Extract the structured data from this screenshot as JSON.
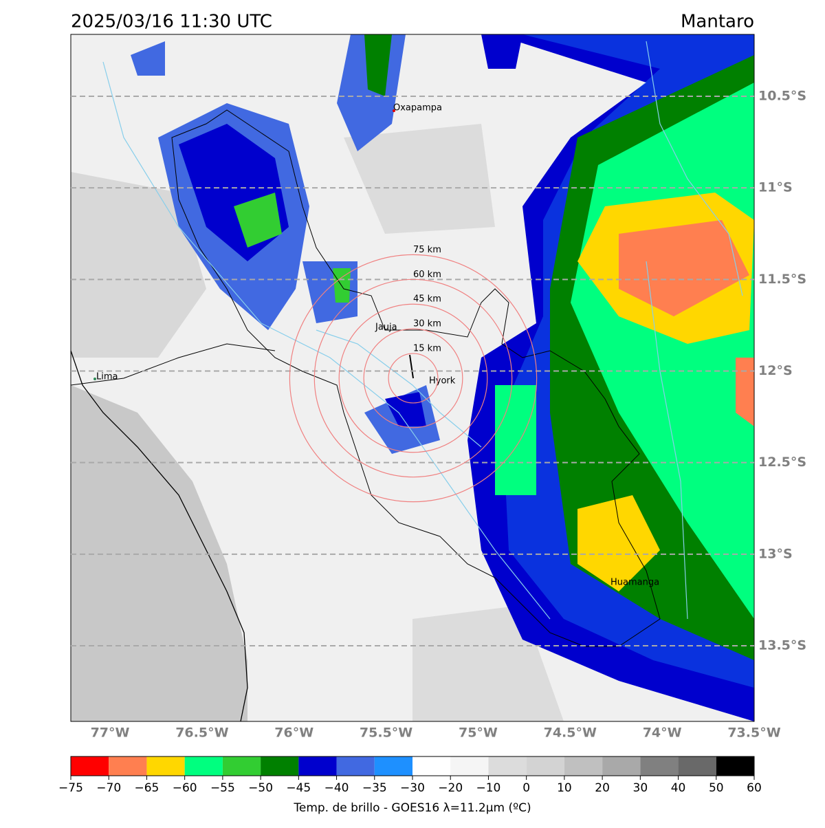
{
  "title": "2025/03/16 11:30 UTC",
  "region": "Mantaro",
  "map": {
    "xlim": [
      -77.213,
      -73.5
    ],
    "ylim": [
      -13.913,
      -10.162
    ],
    "xticks": [
      {
        "value": -77,
        "label": "77°W"
      },
      {
        "value": -76.5,
        "label": "76.5°W"
      },
      {
        "value": -76,
        "label": "76°W"
      },
      {
        "value": -75.5,
        "label": "75.5°W"
      },
      {
        "value": -75,
        "label": "75°W"
      },
      {
        "value": -74.5,
        "label": "74.5°W"
      },
      {
        "value": -74,
        "label": "74°W"
      },
      {
        "value": -73.5,
        "label": "73.5°W"
      }
    ],
    "yticks": [
      {
        "value": -10.5,
        "label": "10.5°S"
      },
      {
        "value": -11,
        "label": "11°S"
      },
      {
        "value": -11.5,
        "label": "11.5°S"
      },
      {
        "value": -12,
        "label": "12°S"
      },
      {
        "value": -12.5,
        "label": "12.5°S"
      },
      {
        "value": -13,
        "label": "13°S"
      },
      {
        "value": -13.5,
        "label": "13.5°S"
      }
    ],
    "lat_grid": true,
    "rings": [
      {
        "value": 15,
        "label": "15 km"
      },
      {
        "value": 30,
        "label": "30 km"
      },
      {
        "value": 45,
        "label": "45 km"
      },
      {
        "value": 60,
        "label": "60 km"
      },
      {
        "value": 75,
        "label": "75 km"
      }
    ],
    "ring_color": "#f08080",
    "cities": [
      "Oxapampa",
      "Jauja",
      "Hyork",
      "Lima",
      "Huamanga"
    ]
  },
  "colorbar": {
    "label": "Temp. de brillo - GOES16 λ=11.2μm (ºC)",
    "bounds": [
      {
        "value": -75,
        "label": "−75"
      },
      {
        "value": -70,
        "label": "−70"
      },
      {
        "value": -65,
        "label": "−65"
      },
      {
        "value": -60,
        "label": "−60"
      },
      {
        "value": -55,
        "label": "−55"
      },
      {
        "value": -50,
        "label": "−50"
      },
      {
        "value": -45,
        "label": "−45"
      },
      {
        "value": -40,
        "label": "−40"
      },
      {
        "value": -35,
        "label": "−35"
      },
      {
        "value": -30,
        "label": "−30"
      },
      {
        "value": -20,
        "label": "−20"
      },
      {
        "value": -10,
        "label": "−10"
      },
      0,
      10,
      20,
      30,
      40,
      50,
      60
    ],
    "colors": [
      "#ff0000",
      "#ff7f50",
      "#ffd700",
      "#00ff7f",
      "#32cd32",
      "#008000",
      "#0000cd",
      "#4169e1",
      "#1e90ff",
      "#ffffff",
      "#f5f5f5",
      "#dcdcdc",
      "#d3d3d3",
      "#c0c0c0",
      "#a9a9a9",
      "#808080",
      "#696969",
      "#000000"
    ]
  }
}
